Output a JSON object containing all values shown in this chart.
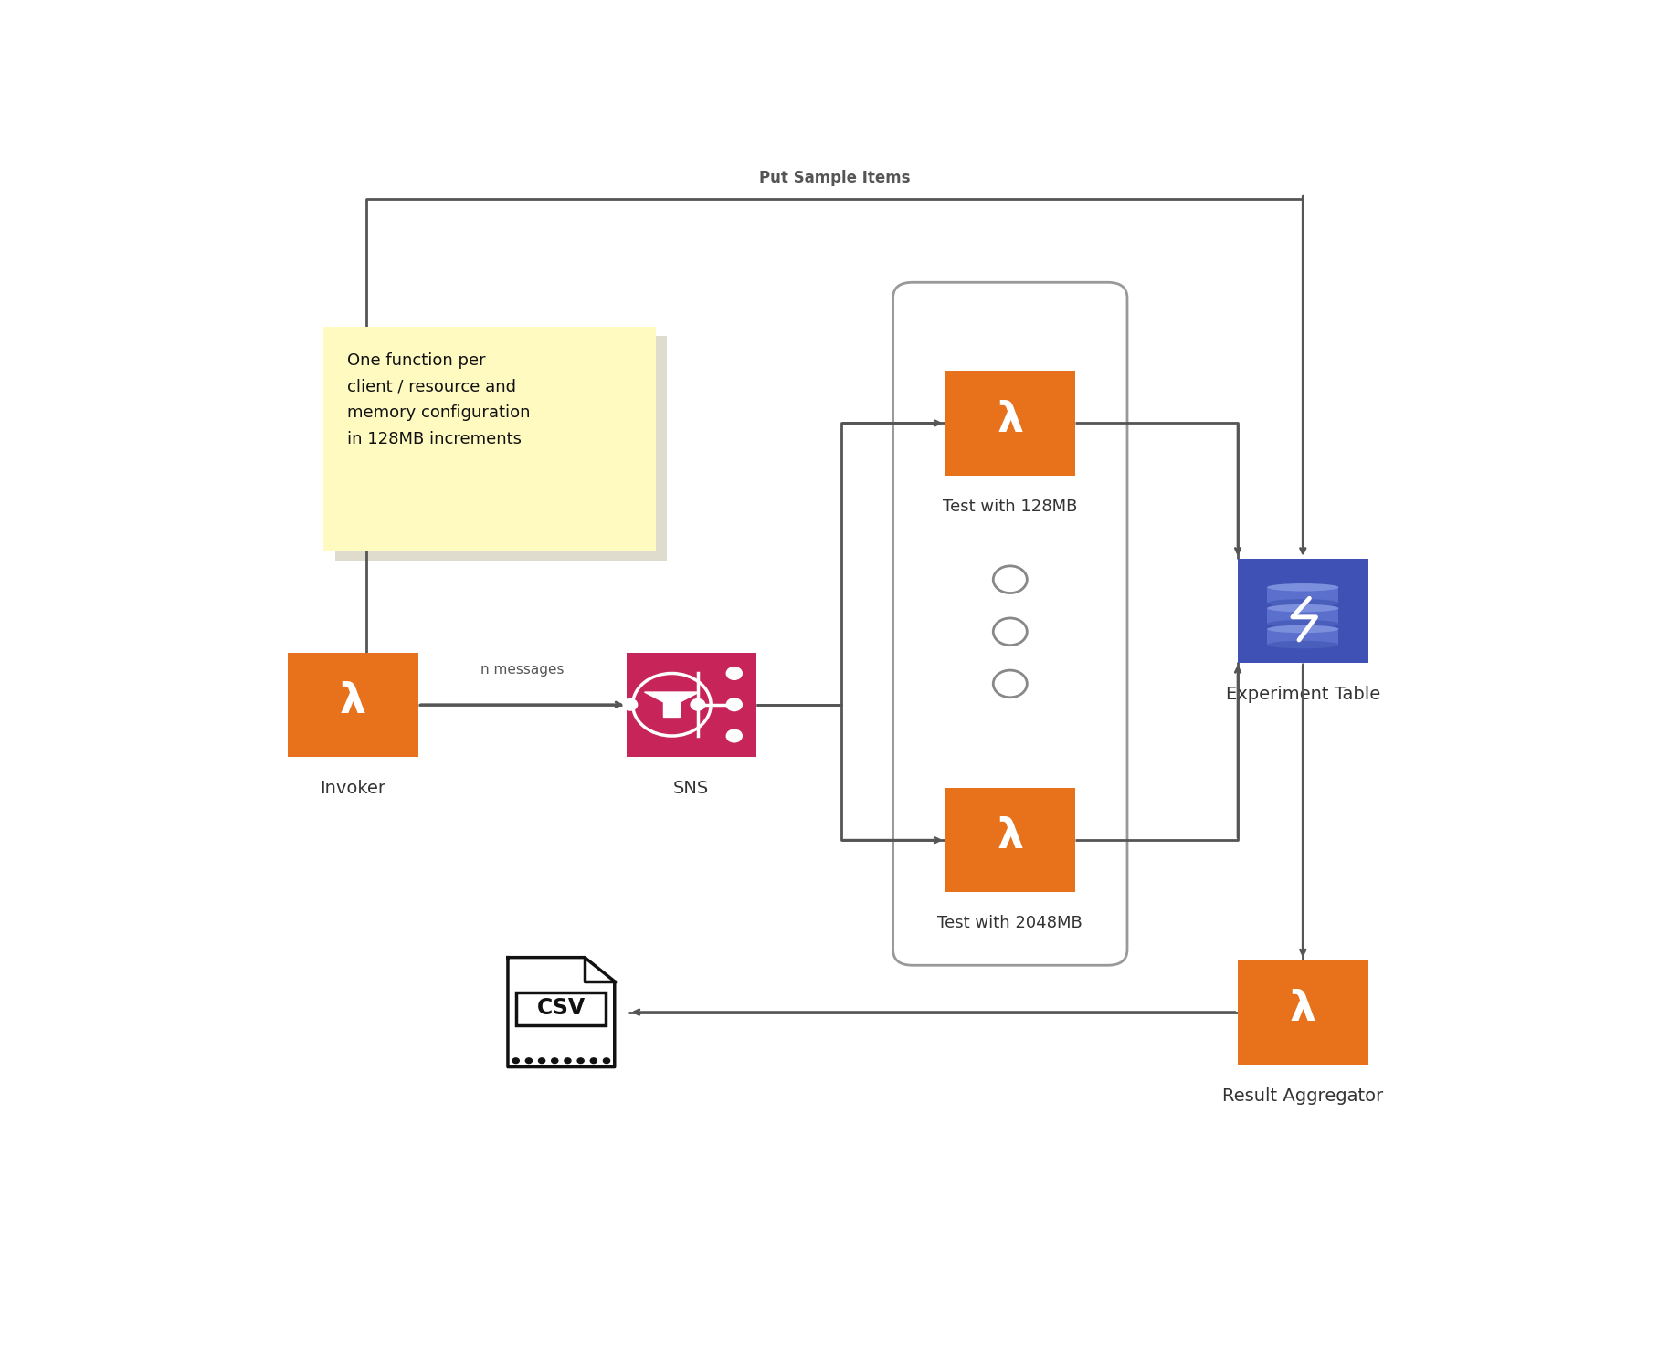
{
  "bg_color": "#ffffff",
  "lambda_color": "#E8721C",
  "sns_color": "#C7245A",
  "dynamo_color": "#3F51B5",
  "note_color": "#FEFAC0",
  "arrow_color": "#555555",
  "label_color": "#333333",
  "note_text": "One function per\nclient / resource and\nmemory configuration\nin 128MB increments",
  "label_invoker": "Invoker",
  "label_sns": "SNS",
  "label_lambda_top": "Test with 128MB",
  "label_lambda_bottom": "Test with 2048MB",
  "label_dynamo": "Experiment Table",
  "label_aggregator": "Result Aggregator",
  "label_arrow_messages": "n messages",
  "label_put_sample": "Put Sample Items"
}
